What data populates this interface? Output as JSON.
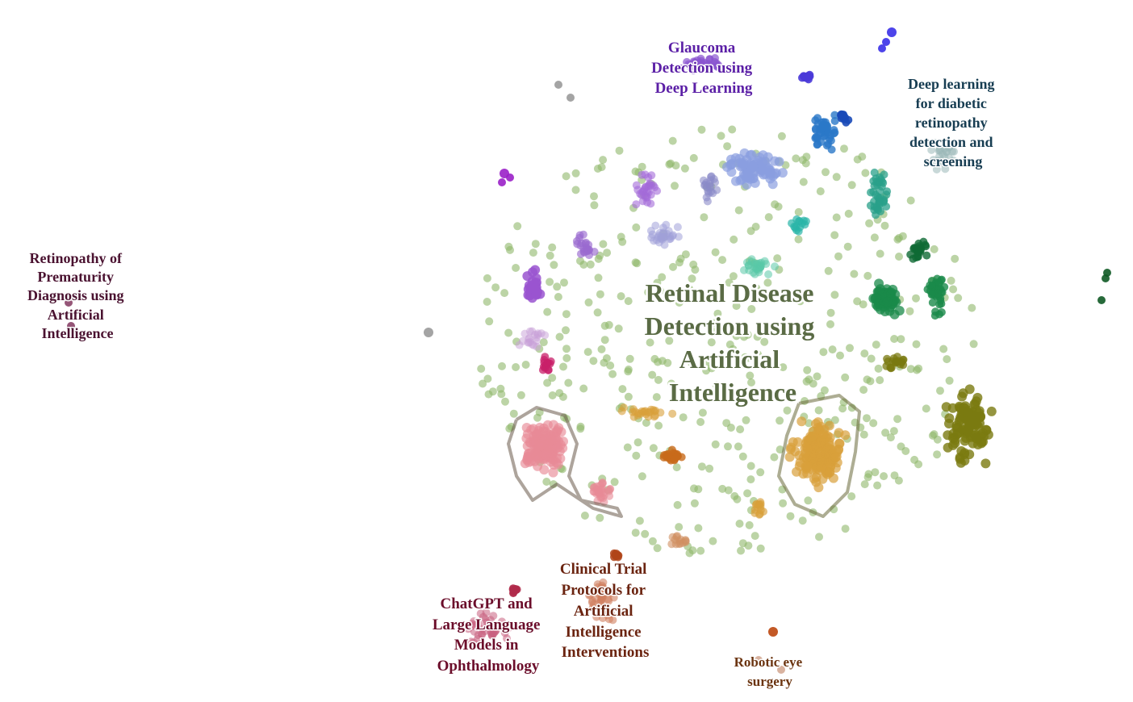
{
  "map": {
    "main_title": {
      "lines": [
        "Retinal Disease",
        "Detection using",
        "Artificial",
        "Intelligence"
      ],
      "color": "#5a6b45"
    },
    "clusters": [
      {
        "id": "glaucoma",
        "lines": [
          "Glaucoma",
          "Detection using",
          "Deep Learning"
        ],
        "color": "#5b1fa6",
        "dot": "#8e55d6"
      },
      {
        "id": "diabetic-retinopathy",
        "lines": [
          "Deep learning",
          "for diabetic",
          "retinopathy",
          "detection and",
          "screening"
        ],
        "color": "#173d52",
        "dot": "#2a78c8"
      },
      {
        "id": "rop",
        "lines": [
          "Retinopathy of",
          "Prematurity",
          "Diagnosis using",
          "Artificial",
          "Intelligence"
        ],
        "color": "#4a1230",
        "dot": "#7a2a55"
      },
      {
        "id": "chatgpt",
        "lines": [
          "ChatGPT and",
          "Large Language",
          "Models in",
          "Ophthalmology"
        ],
        "color": "#6b0d2a",
        "dot": "#b83a5a"
      },
      {
        "id": "clinical-trials",
        "lines": [
          "Clinical Trial",
          "Protocols for",
          "Artificial",
          "Intelligence",
          "Interventions"
        ],
        "color": "#6b2410",
        "dot": "#c8593a"
      },
      {
        "id": "robotic-surgery",
        "lines": [
          "Robotic eye",
          "surgery"
        ],
        "color": "#6b3410",
        "dot": "#b8601a"
      }
    ],
    "palette": {
      "background_points": "#8fb86a",
      "pink": "#e88a96",
      "orange": "#d9a03a",
      "olive": "#7a7a10",
      "green": "#1a8a4a",
      "teal": "#2ab5a8",
      "blue": "#2a78c8",
      "lavender": "#8a9ee0",
      "purple": "#9a55d0",
      "magenta": "#c8206a",
      "brown": "#c86a1a",
      "gray": "#9a9a9a"
    }
  }
}
